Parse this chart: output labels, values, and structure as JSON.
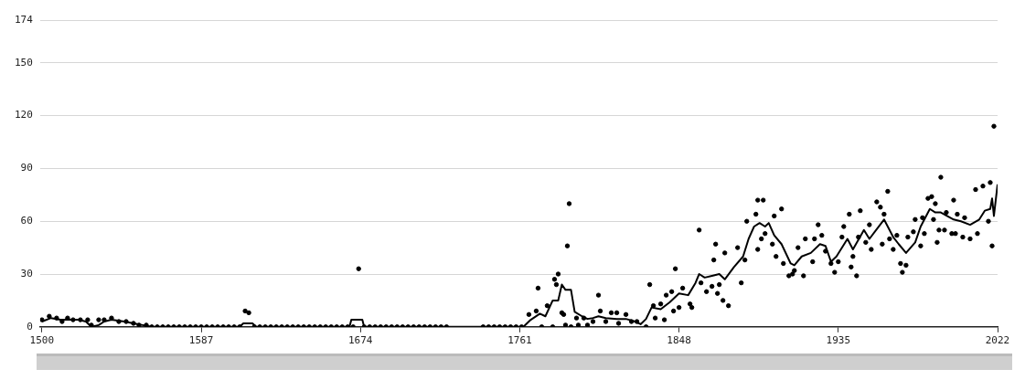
{
  "chart_data": {
    "type": "scatter",
    "xlim": [
      1499,
      2022
    ],
    "xticks": [
      1500,
      1587,
      1674,
      1761,
      1848,
      1935,
      2022
    ],
    "ylim": [
      0,
      174
    ],
    "yticks": [
      0,
      30,
      60,
      90,
      120,
      150,
      174
    ],
    "grid": "y",
    "legend": false,
    "series": [
      {
        "type": "scatter",
        "marker": "circle",
        "color": "#000000",
        "x": [
          1500,
          1504,
          1508,
          1511,
          1514,
          1517,
          1521,
          1525,
          1527,
          1531,
          1534,
          1538,
          1542,
          1546,
          1550,
          1553,
          1557,
          1560,
          1563,
          1566,
          1569,
          1572,
          1575,
          1578,
          1581,
          1584,
          1587,
          1590,
          1593,
          1596,
          1599,
          1602,
          1605,
          1608,
          1611,
          1613,
          1616,
          1619,
          1622,
          1625,
          1628,
          1631,
          1634,
          1637,
          1640,
          1643,
          1646,
          1649,
          1652,
          1655,
          1658,
          1661,
          1664,
          1667,
          1670,
          1673,
          1676,
          1679,
          1682,
          1685,
          1688,
          1691,
          1694,
          1697,
          1700,
          1703,
          1706,
          1709,
          1712,
          1715,
          1718,
          1721,
          1741,
          1744,
          1747,
          1750,
          1753,
          1756,
          1759,
          1762,
          1766,
          1770,
          1771,
          1773,
          1776,
          1779,
          1780,
          1781,
          1782,
          1784,
          1785,
          1786,
          1787,
          1788,
          1789,
          1792,
          1793,
          1796,
          1798,
          1801,
          1804,
          1805,
          1808,
          1811,
          1814,
          1815,
          1819,
          1822,
          1825,
          1830,
          1832,
          1834,
          1835,
          1838,
          1840,
          1841,
          1844,
          1845,
          1846,
          1848,
          1850,
          1854,
          1855,
          1859,
          1860,
          1863,
          1866,
          1867,
          1868,
          1869,
          1870,
          1872,
          1873,
          1875,
          1880,
          1882,
          1884,
          1885,
          1890,
          1891,
          1891,
          1893,
          1894,
          1895,
          1899,
          1900,
          1901,
          1904,
          1905,
          1908,
          1910,
          1911,
          1913,
          1916,
          1917,
          1921,
          1922,
          1924,
          1926,
          1928,
          1931,
          1933,
          1935,
          1937,
          1938,
          1941,
          1942,
          1943,
          1945,
          1946,
          1947,
          1950,
          1952,
          1953,
          1956,
          1958,
          1959,
          1960,
          1962,
          1963,
          1965,
          1967,
          1969,
          1970,
          1972,
          1973,
          1976,
          1977,
          1980,
          1981,
          1982,
          1984,
          1986,
          1987,
          1988,
          1989,
          1990,
          1991,
          1993,
          1994,
          1997,
          1998,
          1999,
          2000,
          2003,
          2004,
          2007,
          2010,
          2011,
          2014,
          2017,
          2018,
          2019,
          2020
        ],
        "values": [
          4,
          6,
          5,
          3,
          5,
          4,
          4,
          4,
          1,
          4,
          4,
          5,
          3,
          3,
          2,
          1,
          1,
          0,
          0,
          0,
          0,
          0,
          0,
          0,
          0,
          0,
          0,
          0,
          0,
          0,
          0,
          0,
          0,
          0,
          9,
          8,
          0,
          0,
          0,
          0,
          0,
          0,
          0,
          0,
          0,
          0,
          0,
          0,
          0,
          0,
          0,
          0,
          0,
          0,
          0,
          33,
          0,
          0,
          0,
          0,
          0,
          0,
          0,
          0,
          0,
          0,
          0,
          0,
          0,
          0,
          0,
          0,
          0,
          0,
          0,
          0,
          0,
          0,
          0,
          0,
          7,
          9,
          22,
          0,
          12,
          0,
          27,
          24,
          30,
          8,
          7,
          1,
          46,
          70,
          0,
          5,
          1,
          5,
          1,
          3,
          18,
          9,
          3,
          8,
          8,
          2,
          7,
          3,
          3,
          0,
          24,
          12,
          5,
          13,
          4,
          18,
          20,
          9,
          33,
          11,
          22,
          13,
          11,
          55,
          25,
          20,
          23,
          38,
          47,
          19,
          24,
          15,
          42,
          12,
          45,
          25,
          38,
          60,
          64,
          72,
          44,
          50,
          72,
          53,
          47,
          63,
          40,
          67,
          36,
          29,
          30,
          32,
          45,
          29,
          50,
          37,
          50,
          58,
          52,
          43,
          36,
          31,
          37,
          51,
          57,
          64,
          34,
          40,
          29,
          51,
          66,
          48,
          58,
          44,
          71,
          68,
          47,
          64,
          77,
          50,
          44,
          52,
          36,
          31,
          35,
          51,
          54,
          61,
          46,
          62,
          53,
          73,
          74,
          61,
          70,
          48,
          55,
          85,
          55,
          65,
          53,
          72,
          53,
          64,
          51,
          62,
          50,
          78,
          53,
          80,
          60,
          82,
          46,
          114
        ]
      },
      {
        "type": "line",
        "marker": "none",
        "color": "#000000",
        "x": [
          1500,
          1505,
          1510,
          1515,
          1520,
          1524,
          1527,
          1531,
          1534,
          1538,
          1545,
          1550,
          1555,
          1560,
          1608,
          1610,
          1615,
          1617,
          1668,
          1669,
          1675,
          1676,
          1763,
          1767,
          1772,
          1775,
          1779,
          1782,
          1784,
          1786,
          1789,
          1791,
          1795,
          1798,
          1801,
          1804,
          1808,
          1814,
          1819,
          1824,
          1827,
          1830,
          1833,
          1838,
          1843,
          1848,
          1853,
          1857,
          1859,
          1862,
          1866,
          1870,
          1873,
          1878,
          1883,
          1886,
          1889,
          1892,
          1895,
          1897,
          1900,
          1904,
          1909,
          1911,
          1915,
          1920,
          1925,
          1928,
          1931,
          1934,
          1940,
          1943,
          1949,
          1952,
          1960,
          1965,
          1968,
          1972,
          1977,
          1980,
          1985,
          1988,
          1991,
          1998,
          2002,
          2007,
          2012,
          2015,
          2018,
          2019,
          2020,
          2022
        ],
        "values": [
          3,
          5,
          4,
          4,
          4,
          3,
          0,
          1,
          3,
          4,
          3,
          2,
          1,
          0,
          0,
          2,
          2,
          0,
          0,
          4,
          4,
          0,
          0,
          4,
          7.5,
          6,
          15,
          15,
          24,
          21,
          21,
          8.5,
          6,
          4.5,
          5,
          6,
          5,
          4.5,
          4.5,
          3,
          1.5,
          4.5,
          11,
          10,
          14,
          19,
          18,
          25,
          30,
          28,
          29,
          30,
          27,
          34,
          40,
          50,
          57,
          59,
          57,
          59,
          52,
          47,
          36,
          35,
          40,
          42,
          47,
          46,
          37,
          40,
          50,
          44,
          55,
          50,
          61,
          51,
          47,
          42,
          48,
          57,
          67,
          65,
          65,
          61,
          60,
          58,
          61,
          66,
          67,
          73,
          63,
          81
        ]
      }
    ]
  }
}
